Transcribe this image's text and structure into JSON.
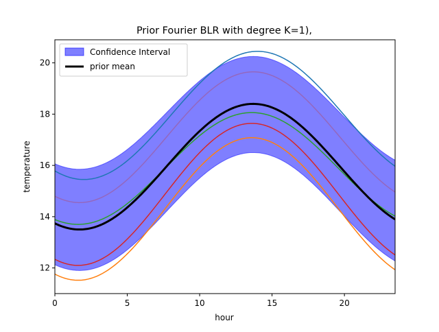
{
  "chart_data": {
    "type": "line",
    "title": "Prior Fourier BLR with degree K=1),",
    "xlabel": "hour",
    "ylabel": "temperature",
    "xlim": [
      0,
      23.5
    ],
    "ylim": [
      11.0,
      20.9
    ],
    "xticks": [
      0,
      5,
      10,
      15,
      20
    ],
    "yticks": [
      12,
      14,
      16,
      18,
      20
    ],
    "grid": false,
    "legend_placement": "top-left",
    "band": {
      "name": "Confidence Interval",
      "color": "#0000ff",
      "mean": 14.2,
      "amplitude": 4.17,
      "phase_hour": 1.7,
      "period_hours": 24,
      "half_width_std": 2
    },
    "series": [
      {
        "name": "prior mean",
        "color": "#000000",
        "mean": 15.95,
        "amplitude": 2.45,
        "phase_hour": 1.7,
        "width": 3,
        "legend": true
      },
      {
        "color": "#1f77b4",
        "mean": 17.95,
        "amplitude": 2.5,
        "phase_hour": 2.0,
        "width": 1.5,
        "legend": false
      },
      {
        "color": "#9467bd",
        "mean": 17.1,
        "amplitude": 2.55,
        "phase_hour": 1.7,
        "width": 1.5,
        "legend": false
      },
      {
        "color": "#2ca02c",
        "mean": 15.88,
        "amplitude": 2.18,
        "phase_hour": 1.6,
        "width": 1.5,
        "legend": false
      },
      {
        "color": "#d62728",
        "mean": 14.87,
        "amplitude": 2.77,
        "phase_hour": 1.6,
        "width": 1.5,
        "legend": false
      },
      {
        "color": "#ff7f0e",
        "mean": 14.3,
        "amplitude": 2.78,
        "phase_hour": 1.6,
        "width": 1.5,
        "legend": false
      }
    ]
  }
}
